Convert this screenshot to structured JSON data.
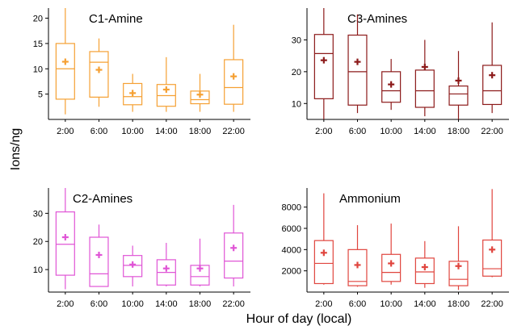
{
  "figure": {
    "ylabel": "Ions/ng",
    "xlabel": "Hour of day (local)"
  },
  "chart_data": [
    {
      "type": "box",
      "title": "C1-Amine",
      "color": "#f5a033",
      "categories": [
        "2:00",
        "6:00",
        "10:00",
        "14:00",
        "18:00",
        "22:00"
      ],
      "ylim": [
        0,
        22
      ],
      "yticks": [
        5,
        10,
        15,
        20
      ],
      "boxes": [
        {
          "whisker_low": 1.0,
          "q1": 4.0,
          "median": 10.0,
          "q3": 15.0,
          "whisker_high": 22.0,
          "mean": 11.4
        },
        {
          "whisker_low": 2.5,
          "q1": 4.4,
          "median": 11.3,
          "q3": 13.4,
          "whisker_high": 16.0,
          "mean": 9.8
        },
        {
          "whisker_low": 1.5,
          "q1": 2.9,
          "median": 4.5,
          "q3": 7.1,
          "whisker_high": 9.0,
          "mean": 5.2
        },
        {
          "whisker_low": 1.5,
          "q1": 2.6,
          "median": 4.7,
          "q3": 6.9,
          "whisker_high": 12.3,
          "mean": 5.9
        },
        {
          "whisker_low": 1.5,
          "q1": 3.1,
          "median": 3.9,
          "q3": 5.6,
          "whisker_high": 9.0,
          "mean": 4.9
        },
        {
          "whisker_low": 1.5,
          "q1": 3.0,
          "median": 6.3,
          "q3": 11.8,
          "whisker_high": 18.7,
          "mean": 8.5
        }
      ]
    },
    {
      "type": "box",
      "title": "C3-Amines",
      "color": "#8c1a1a",
      "categories": [
        "2:00",
        "6:00",
        "10:00",
        "14:00",
        "18:00",
        "22:00"
      ],
      "ylim": [
        5,
        40
      ],
      "yticks": [
        10,
        20,
        30
      ],
      "boxes": [
        {
          "whisker_low": 5.0,
          "q1": 11.5,
          "median": 25.7,
          "q3": 31.7,
          "whisker_high": 40.0,
          "mean": 23.6
        },
        {
          "whisker_low": 7.0,
          "q1": 9.5,
          "median": 20.0,
          "q3": 31.5,
          "whisker_high": 38.0,
          "mean": 23.1
        },
        {
          "whisker_low": 8.0,
          "q1": 10.4,
          "median": 14.0,
          "q3": 20.0,
          "whisker_high": 24.0,
          "mean": 16.0
        },
        {
          "whisker_low": 6.0,
          "q1": 8.8,
          "median": 14.0,
          "q3": 20.5,
          "whisker_high": 30.0,
          "mean": 21.5
        },
        {
          "whisker_low": 5.0,
          "q1": 9.5,
          "median": 13.0,
          "q3": 15.5,
          "whisker_high": 26.5,
          "mean": 17.2
        },
        {
          "whisker_low": 7.0,
          "q1": 9.7,
          "median": 14.0,
          "q3": 22.0,
          "whisker_high": 35.5,
          "mean": 18.9
        }
      ]
    },
    {
      "type": "box",
      "title": "C2-Amines",
      "color": "#e055d6",
      "categories": [
        "2:00",
        "6:00",
        "10:00",
        "14:00",
        "18:00",
        "22:00"
      ],
      "ylim": [
        2,
        39
      ],
      "yticks": [
        10,
        20,
        30
      ],
      "boxes": [
        {
          "whisker_low": 3.0,
          "q1": 8.0,
          "median": 19.0,
          "q3": 30.5,
          "whisker_high": 39.0,
          "mean": 21.5
        },
        {
          "whisker_low": 4.0,
          "q1": 4.0,
          "median": 8.5,
          "q3": 21.5,
          "whisker_high": 26.0,
          "mean": 15.2
        },
        {
          "whisker_low": 4.0,
          "q1": 7.5,
          "median": 11.5,
          "q3": 15.0,
          "whisker_high": 18.5,
          "mean": 11.8
        },
        {
          "whisker_low": 4.0,
          "q1": 4.5,
          "median": 9.0,
          "q3": 13.5,
          "whisker_high": 19.5,
          "mean": 10.4
        },
        {
          "whisker_low": 4.0,
          "q1": 4.5,
          "median": 7.5,
          "q3": 11.5,
          "whisker_high": 21.0,
          "mean": 10.4
        },
        {
          "whisker_low": 4.0,
          "q1": 7.0,
          "median": 13.0,
          "q3": 23.0,
          "whisker_high": 33.0,
          "mean": 17.7
        }
      ]
    },
    {
      "type": "box",
      "title": "Ammonium",
      "color": "#e0453e",
      "categories": [
        "2:00",
        "6:00",
        "10:00",
        "14:00",
        "18:00",
        "22:00"
      ],
      "ylim": [
        0,
        9800
      ],
      "yticks": [
        2000,
        4000,
        6000,
        8000
      ],
      "boxes": [
        {
          "whisker_low": 700,
          "q1": 800,
          "median": 2700,
          "q3": 4850,
          "whisker_high": 9300,
          "mean": 3700
        },
        {
          "whisker_low": 500,
          "q1": 600,
          "median": 1000,
          "q3": 4000,
          "whisker_high": 6300,
          "mean": 2550
        },
        {
          "whisker_low": 700,
          "q1": 1000,
          "median": 1850,
          "q3": 3550,
          "whisker_high": 6450,
          "mean": 2700
        },
        {
          "whisker_low": 400,
          "q1": 800,
          "median": 1900,
          "q3": 3200,
          "whisker_high": 4800,
          "mean": 2350
        },
        {
          "whisker_low": 200,
          "q1": 600,
          "median": 1200,
          "q3": 2900,
          "whisker_high": 6200,
          "mean": 2450
        },
        {
          "whisker_low": 1400,
          "q1": 1500,
          "median": 2200,
          "q3": 4900,
          "whisker_high": 9700,
          "mean": 4000
        }
      ]
    }
  ]
}
